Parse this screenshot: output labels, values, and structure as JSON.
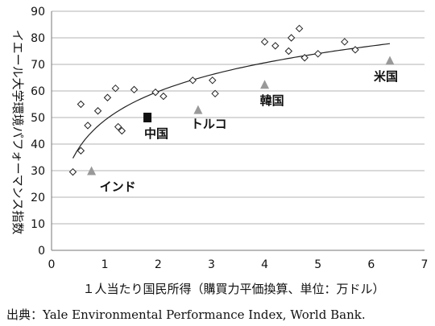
{
  "chart_data": {
    "type": "scatter",
    "xlabel": "１人当たり国民所得（購買力平価換算、単位：万ドル）",
    "ylabel": "イエール大学環境パフォーマンス指数",
    "xlim": [
      0,
      7
    ],
    "ylim": [
      0,
      90
    ],
    "x_ticks": [
      "0",
      "1",
      "2",
      "3",
      "4",
      "5",
      "6",
      "7"
    ],
    "y_ticks": [
      "0",
      "10",
      "20",
      "30",
      "40",
      "50",
      "60",
      "70",
      "80",
      "90"
    ],
    "grid": "horizontal",
    "series": [
      {
        "marker": "diamond",
        "points": [
          {
            "x": 0.4,
            "y": 29.5
          },
          {
            "x": 0.55,
            "y": 37.5
          },
          {
            "x": 0.55,
            "y": 55.0
          },
          {
            "x": 0.68,
            "y": 47.0
          },
          {
            "x": 0.87,
            "y": 52.5
          },
          {
            "x": 1.05,
            "y": 57.5
          },
          {
            "x": 1.2,
            "y": 61.0
          },
          {
            "x": 1.25,
            "y": 46.5
          },
          {
            "x": 1.32,
            "y": 45.0
          },
          {
            "x": 1.55,
            "y": 60.5
          },
          {
            "x": 1.95,
            "y": 59.5
          },
          {
            "x": 2.1,
            "y": 58.0
          },
          {
            "x": 2.65,
            "y": 64.0
          },
          {
            "x": 3.02,
            "y": 64.0
          },
          {
            "x": 3.07,
            "y": 59.0
          },
          {
            "x": 4.0,
            "y": 78.5
          },
          {
            "x": 4.2,
            "y": 77.0
          },
          {
            "x": 4.45,
            "y": 75.0
          },
          {
            "x": 4.5,
            "y": 80.0
          },
          {
            "x": 4.65,
            "y": 83.5
          },
          {
            "x": 4.75,
            "y": 72.5
          },
          {
            "x": 5.0,
            "y": 74.0
          },
          {
            "x": 5.5,
            "y": 78.5
          },
          {
            "x": 5.7,
            "y": 75.5
          }
        ]
      },
      {
        "marker": "triangle",
        "color": "#999999",
        "points": [
          {
            "x": 0.75,
            "y": 30.0,
            "label": "インド"
          },
          {
            "x": 2.75,
            "y": 53.0,
            "label": "トルコ"
          },
          {
            "x": 4.0,
            "y": 62.5,
            "label": "韓国"
          },
          {
            "x": 6.35,
            "y": 71.5,
            "label": "米国"
          }
        ]
      },
      {
        "marker": "square",
        "color": "#111111",
        "points": [
          {
            "x": 1.8,
            "y": 50.0,
            "label": "中国"
          }
        ]
      }
    ],
    "trendline": {
      "type": "logarithmic"
    },
    "source": {
      "prefix": "出典：",
      "text": "Yale Environmental Performance Index, World Bank."
    }
  }
}
